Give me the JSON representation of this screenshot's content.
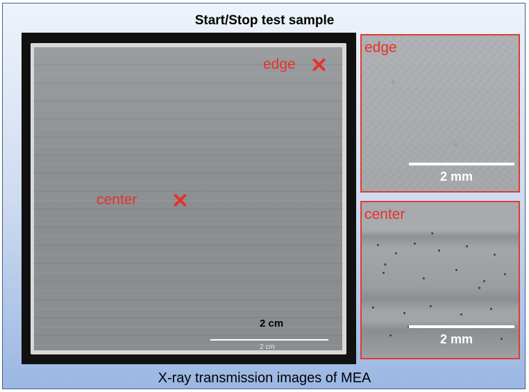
{
  "title": "Start/Stop test sample",
  "caption": "X-ray transmission images of MEA",
  "main_image": {
    "markers": {
      "edge": {
        "label": "edge",
        "symbol": "✕"
      },
      "center": {
        "label": "center",
        "symbol": "✕"
      }
    },
    "scale_bar_label_bold": "2 cm",
    "scale_bar_label_small": "2 cm"
  },
  "zoom_panels": {
    "edge": {
      "label": "edge",
      "scale_label": "2 mm"
    },
    "center": {
      "label": "center",
      "scale_label": "2 mm"
    }
  },
  "colors": {
    "marker": "#e8302a",
    "panel_border": "#e23a2f",
    "background_top": "#eef3fb",
    "background_bottom": "#9ab7e3"
  }
}
